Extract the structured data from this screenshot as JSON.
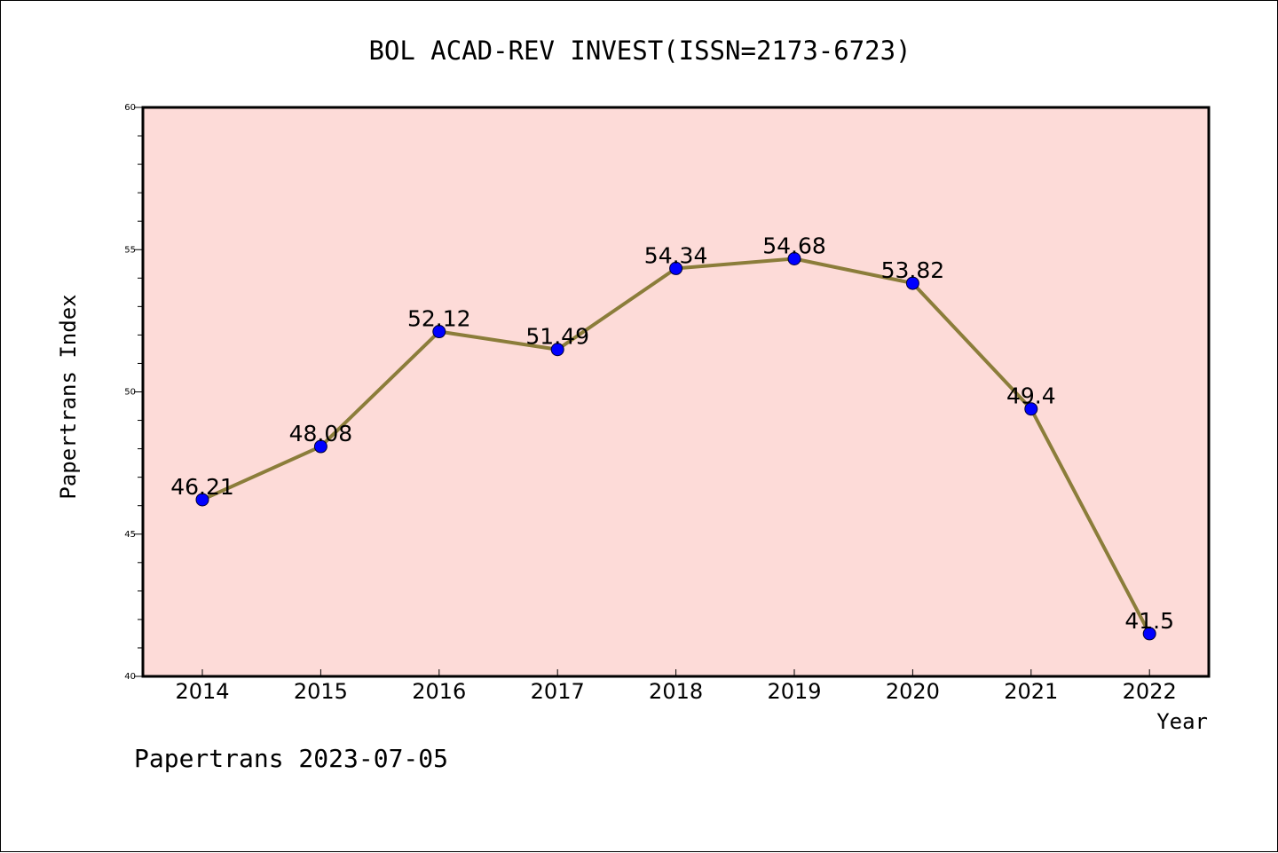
{
  "chart_data": {
    "type": "line",
    "title": "BOL ACAD-REV INVEST(ISSN=2173-6723)",
    "xlabel": "Year",
    "ylabel": "Papertrans Index",
    "categories": [
      "2014",
      "2015",
      "2016",
      "2017",
      "2018",
      "2019",
      "2020",
      "2021",
      "2022"
    ],
    "series": [
      {
        "values": [
          46.21,
          48.08,
          52.12,
          51.49,
          54.34,
          54.68,
          53.82,
          49.4,
          41.5
        ],
        "labels": [
          "46.21",
          "48.08",
          "52.12",
          "51.49",
          "54.34",
          "54.68",
          "53.82",
          "49.4",
          "41.5"
        ]
      }
    ],
    "ylim": [
      40,
      60
    ],
    "yticks": [
      "40",
      "45",
      "50",
      "55",
      "60"
    ],
    "grid": false,
    "colors": {
      "plot_background": "#fddbd8",
      "line": "#8b7d3a",
      "marker": "#0000ff"
    }
  },
  "footer": "Papertrans 2023-07-05"
}
